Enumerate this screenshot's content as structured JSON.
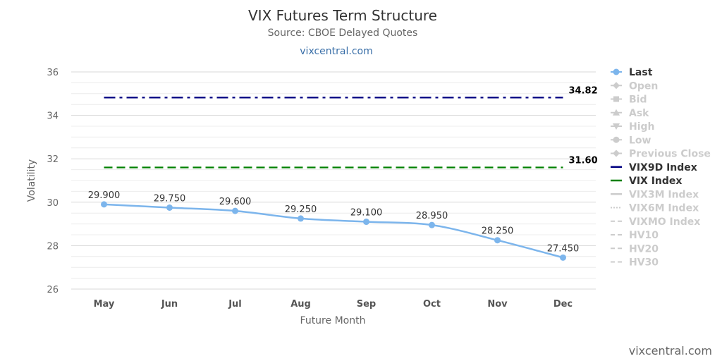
{
  "header": {
    "title": "VIX Futures Term Structure",
    "subtitle": "Source: CBOE Delayed Quotes",
    "link": "vixcentral.com"
  },
  "credit": "vixcentral.com",
  "chart_data": {
    "type": "line",
    "xlabel": "Future Month",
    "ylabel": "Volatility",
    "ylim": [
      26,
      36
    ],
    "yticks": [
      26,
      28,
      30,
      32,
      34,
      36
    ],
    "grid": true,
    "legend_position": "right",
    "categories": [
      "May",
      "Jun",
      "Jul",
      "Aug",
      "Sep",
      "Oct",
      "Nov",
      "Dec"
    ],
    "series": [
      {
        "name": "Last",
        "values": [
          29.9,
          29.75,
          29.6,
          29.25,
          29.1,
          28.95,
          28.25,
          27.45
        ],
        "labels": [
          "29.900",
          "29.750",
          "29.600",
          "29.250",
          "29.100",
          "28.950",
          "28.250",
          "27.450"
        ],
        "color": "#7cb5ec"
      }
    ],
    "reference_lines": [
      {
        "name": "VIX9D Index",
        "value": 34.82,
        "label": "34.82",
        "color": "#000080",
        "dash": "dashdot"
      },
      {
        "name": "VIX Index",
        "value": 31.6,
        "label": "31.60",
        "color": "#008000",
        "dash": "dash"
      }
    ],
    "legend": [
      {
        "label": "Last",
        "active": true,
        "color": "#7cb5ec",
        "symbol": "circle"
      },
      {
        "label": "Open",
        "active": false,
        "symbol": "diamond"
      },
      {
        "label": "Bid",
        "active": false,
        "symbol": "square"
      },
      {
        "label": "Ask",
        "active": false,
        "symbol": "triangle"
      },
      {
        "label": "High",
        "active": false,
        "symbol": "triangle-down"
      },
      {
        "label": "Low",
        "active": false,
        "symbol": "circle"
      },
      {
        "label": "Previous Close",
        "active": false,
        "symbol": "diamond"
      },
      {
        "label": "VIX9D Index",
        "active": true,
        "color": "#000080",
        "symbol": "line"
      },
      {
        "label": "VIX Index",
        "active": true,
        "color": "#008000",
        "symbol": "line"
      },
      {
        "label": "VIX3M Index",
        "active": false,
        "symbol": "line"
      },
      {
        "label": "VIX6M Index",
        "active": false,
        "symbol": "dotted"
      },
      {
        "label": "VIXMO Index",
        "active": false,
        "symbol": "dashed"
      },
      {
        "label": "HV10",
        "active": false,
        "symbol": "dashed"
      },
      {
        "label": "HV20",
        "active": false,
        "symbol": "dashed"
      },
      {
        "label": "HV30",
        "active": false,
        "symbol": "dashed"
      }
    ]
  }
}
